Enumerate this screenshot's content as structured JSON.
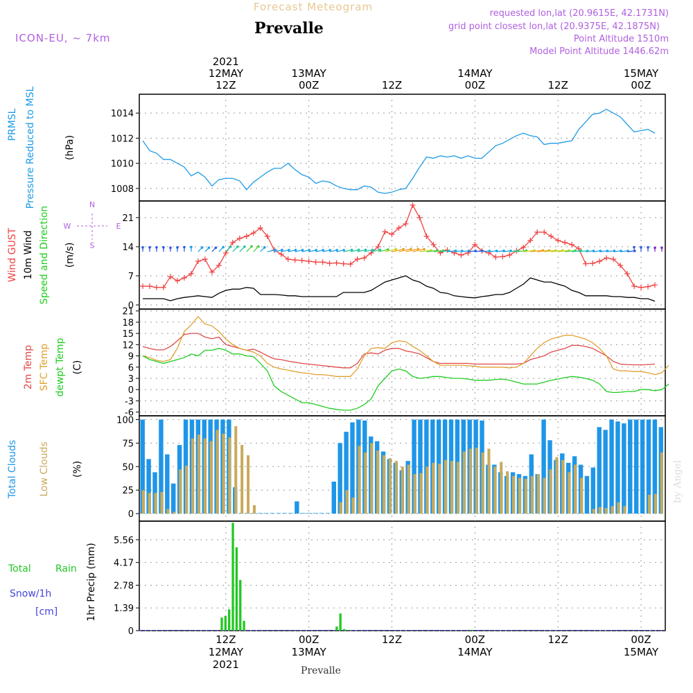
{
  "header": {
    "title": "Forecast Meteogram",
    "location": "Prevalle",
    "model": "ICON-EU, ~ 7km",
    "info": [
      "requested lon,lat (20.9615E, 42.1731N)",
      "grid point closest lon,lat (20.9375E, 42.1875N)",
      "Point Altitude 1510m",
      "Model Point Altitude 1446.62m"
    ],
    "footer_location": "Prevalle",
    "watermark": "by Angel"
  },
  "colors": {
    "pressure": "#1e9be6",
    "gust": "#f04040",
    "wind": "#000000",
    "temp2m": "#e04848",
    "sfc": "#e0a030",
    "dewpt": "#1ecc1e",
    "total_clouds": "#1e96e8",
    "low_clouds": "#c8aa5a",
    "rain": "#22c822",
    "purple": "#b060e0",
    "title_orange": "#e8c890",
    "grid": "#999999"
  },
  "time_axis": {
    "top_labels": [
      {
        "x": 12,
        "lines": [
          "2021",
          "12MAY",
          "12Z"
        ]
      },
      {
        "x": 24,
        "lines": [
          "13MAY",
          "00Z"
        ]
      },
      {
        "x": 36,
        "lines": [
          "12Z"
        ]
      },
      {
        "x": 48,
        "lines": [
          "14MAY",
          "00Z"
        ]
      },
      {
        "x": 60,
        "lines": [
          "12Z"
        ]
      },
      {
        "x": 72,
        "lines": [
          "15MAY",
          "00Z"
        ]
      }
    ],
    "bottom_labels": [
      {
        "x": 12,
        "lines": [
          "12Z",
          "12MAY",
          "2021"
        ]
      },
      {
        "x": 24,
        "lines": [
          "00Z",
          "13MAY"
        ]
      },
      {
        "x": 36,
        "lines": [
          "12Z"
        ]
      },
      {
        "x": 48,
        "lines": [
          "00Z",
          "14MAY"
        ]
      },
      {
        "x": 60,
        "lines": [
          "12Z"
        ]
      },
      {
        "x": 72,
        "lines": [
          "00Z",
          "15MAY"
        ]
      }
    ]
  },
  "chart_data": [
    {
      "type": "line",
      "ylabel_left": [
        "PRMSL",
        "Pressure Reduced to MSL"
      ],
      "ylabel_right": "(hPa)",
      "ylim": [
        1007,
        1015.5
      ],
      "yticks": [
        "1008",
        "1010",
        "1012",
        "1014"
      ],
      "series": [
        {
          "values": [
            1011.8,
            1011.0,
            1010.8,
            1010.3,
            1010.3,
            1010.0,
            1009.7,
            1009.0,
            1009.3,
            1008.9,
            1008.2,
            1008.7,
            1008.8,
            1008.8,
            1008.6,
            1007.9,
            1008.5,
            1008.9,
            1009.3,
            1009.6,
            1009.6,
            1010.0,
            1009.5,
            1009.1,
            1008.9,
            1008.4,
            1008.6,
            1008.5,
            1008.2,
            1008.0,
            1007.9,
            1007.9,
            1008.2,
            1008.1,
            1007.7,
            1007.6,
            1007.7,
            1007.9,
            1008.0,
            1008.8,
            1009.7,
            1010.5,
            1010.4,
            1010.6,
            1010.5,
            1010.6,
            1010.4,
            1010.6,
            1010.4,
            1010.4,
            1010.9,
            1011.4,
            1011.6,
            1011.9,
            1012.2,
            1012.4,
            1012.2,
            1012.1,
            1011.5,
            1011.6,
            1011.6,
            1011.7,
            1011.8,
            1012.7,
            1013.3,
            1013.9,
            1014.0,
            1014.3,
            1014.0,
            1013.7,
            1013.1,
            1012.5,
            1012.6,
            1012.7,
            1012.4
          ]
        }
      ]
    },
    {
      "type": "line",
      "ylabel_left": [
        "Wind GUST",
        "10m Wind",
        "Speed and Direction"
      ],
      "ylabel_right": "(m/s)",
      "ylim": [
        -1,
        25
      ],
      "yticks": [
        "0",
        "7",
        "14",
        "21"
      ],
      "compass": [
        "N",
        "W",
        "E",
        "S"
      ],
      "series": [
        {
          "values": [
            4.5,
            4.5,
            4.2,
            4.2,
            6.8,
            5.8,
            6.5,
            7.5,
            10.5,
            11.0,
            7.9,
            9.5,
            12.5,
            15.0,
            16.0,
            16.5,
            17.3,
            18.5,
            16.5,
            13.2,
            12.2,
            11.0,
            10.8,
            10.7,
            10.5,
            10.3,
            10.3,
            10.0,
            10.1,
            9.9,
            9.8,
            11.0,
            11.3,
            12.5,
            14.0,
            17.6,
            17.0,
            18.5,
            19.5,
            24.0,
            21.0,
            16.5,
            14.5,
            12.5,
            13.2,
            12.5,
            12.0,
            12.5,
            14.5,
            13.0,
            12.5,
            11.5,
            11.6,
            12.0,
            13.0,
            13.8,
            15.5,
            17.5,
            17.5,
            16.5,
            15.5,
            15.0,
            14.5,
            13.5,
            9.9,
            10.0,
            10.5,
            11.3,
            11.0,
            9.5,
            7.5,
            4.5,
            4.2,
            4.4,
            4.8
          ]
        },
        {
          "values": [
            1.5,
            1.5,
            1.5,
            1.5,
            1.0,
            1.5,
            1.8,
            2.0,
            2.2,
            2.0,
            1.8,
            2.8,
            3.5,
            3.8,
            3.8,
            4.2,
            4.0,
            2.5,
            2.5,
            2.5,
            2.4,
            2.2,
            2.2,
            2.0,
            2.0,
            2.0,
            2.0,
            2.0,
            2.0,
            3.0,
            3.0,
            3.0,
            3.0,
            3.5,
            4.5,
            5.5,
            6.0,
            6.5,
            7.0,
            6.0,
            5.5,
            4.5,
            4.0,
            3.0,
            2.8,
            2.2,
            2.0,
            1.8,
            1.7,
            2.0,
            2.2,
            2.5,
            2.5,
            3.0,
            4.0,
            5.0,
            6.5,
            6.0,
            5.5,
            5.5,
            5.0,
            4.5,
            3.5,
            3.0,
            2.2,
            2.2,
            2.2,
            2.2,
            2.0,
            2.0,
            1.8,
            1.8,
            1.5,
            1.5,
            0.9
          ]
        }
      ]
    },
    {
      "type": "line",
      "ylabel_left": [
        "2m Temp",
        "SFC Temp",
        "dewpt Temp"
      ],
      "ylabel_right": "(C)",
      "ylim": [
        -7,
        21.5
      ],
      "yticks": [
        "21",
        "18",
        "15",
        "12",
        "9",
        "6",
        "3",
        "0",
        "-3",
        "-6"
      ],
      "series": [
        {
          "values": [
            11.5,
            11.0,
            10.6,
            10.6,
            11.5,
            13.0,
            14.7,
            15.0,
            15.0,
            14.0,
            13.6,
            14.0,
            12.0,
            11.5,
            11.0,
            10.5,
            10.8,
            10.0,
            9.0,
            8.2,
            8.0,
            7.6,
            7.3,
            7.0,
            6.8,
            6.6,
            6.4,
            6.2,
            6.0,
            5.8,
            5.8,
            7.0,
            9.5,
            9.8,
            9.5,
            10.5,
            11.0,
            11.0,
            10.3,
            10.0,
            9.5,
            8.5,
            7.5,
            7.0,
            7.0,
            7.0,
            7.0,
            7.0,
            6.8,
            6.8,
            6.8,
            6.8,
            6.8,
            6.8,
            6.8,
            7.0,
            8.0,
            8.5,
            9.0,
            10.0,
            10.5,
            11.0,
            11.8,
            11.8,
            11.5,
            11.0,
            10.0,
            9.0,
            7.5,
            6.8,
            6.7,
            6.6,
            6.6,
            6.7,
            6.8
          ]
        },
        {
          "values": [
            9.0,
            8.5,
            7.8,
            7.5,
            8.0,
            11.0,
            15.5,
            17.3,
            19.5,
            17.5,
            17.0,
            15.5,
            13.5,
            12.0,
            11.0,
            10.5,
            10.0,
            9.0,
            7.0,
            6.0,
            5.5,
            5.2,
            4.8,
            4.5,
            4.3,
            4.0,
            4.0,
            3.8,
            3.5,
            3.5,
            3.5,
            5.5,
            9.0,
            11.0,
            11.2,
            11.0,
            12.5,
            13.0,
            12.8,
            11.5,
            10.5,
            9.0,
            7.5,
            6.5,
            6.5,
            6.5,
            6.5,
            6.4,
            6.2,
            6.0,
            6.0,
            6.0,
            6.0,
            5.8,
            6.0,
            7.0,
            9.0,
            11.0,
            12.5,
            13.5,
            14.0,
            14.5,
            14.5,
            14.0,
            13.5,
            12.5,
            11.0,
            9.0,
            5.5,
            5.0,
            5.0,
            4.8,
            4.8,
            4.5,
            4.0,
            4.5,
            6.5
          ]
        },
        {
          "values": [
            9.0,
            8.0,
            7.5,
            7.0,
            7.5,
            8.0,
            8.5,
            9.5,
            9.0,
            10.5,
            10.5,
            11.0,
            10.5,
            9.5,
            9.5,
            9.0,
            8.8,
            7.0,
            5.0,
            1.0,
            -0.5,
            -1.5,
            -2.5,
            -3.5,
            -3.5,
            -4.0,
            -4.5,
            -5.0,
            -5.3,
            -5.5,
            -5.5,
            -5.0,
            -4.0,
            -2.5,
            1.0,
            3.0,
            5.0,
            5.5,
            5.0,
            3.5,
            3.0,
            3.2,
            3.5,
            3.5,
            3.2,
            3.0,
            3.0,
            2.8,
            2.5,
            2.5,
            2.5,
            2.7,
            2.8,
            2.5,
            2.0,
            1.5,
            1.5,
            1.5,
            2.0,
            2.5,
            2.8,
            3.2,
            3.5,
            3.3,
            3.0,
            2.5,
            1.5,
            -0.5,
            -0.8,
            -0.7,
            -0.5,
            -0.5,
            0.0,
            0.0,
            -0.3,
            0.0,
            1.5
          ]
        }
      ]
    },
    {
      "type": "bar",
      "ylabel_left": [
        "Total Clouds",
        "Low Clouds"
      ],
      "ylabel_right": "(%)",
      "ylim": [
        -8,
        104
      ],
      "yticks": [
        "100",
        "75",
        "50",
        "25",
        "0"
      ],
      "series": [
        {
          "values": [
            100,
            58,
            44,
            100,
            63,
            32,
            73,
            100,
            100,
            100,
            100,
            100,
            100,
            100,
            100,
            28,
            0,
            0,
            0,
            0,
            0,
            0,
            0,
            0,
            0,
            13,
            0,
            0,
            0,
            0,
            0,
            34,
            75,
            87,
            97,
            100,
            99,
            82,
            77,
            66,
            58,
            54,
            46,
            56,
            100,
            100,
            100,
            100,
            100,
            100,
            100,
            100,
            100,
            100,
            100,
            99,
            52,
            52,
            44,
            40,
            44,
            42,
            40,
            63,
            42,
            100,
            78,
            57,
            64,
            54,
            61,
            52,
            40,
            49,
            92,
            89,
            100,
            98,
            96,
            100,
            100,
            100,
            100,
            100,
            92
          ]
        },
        {
          "values": [
            25,
            22,
            22,
            23,
            5,
            2,
            47,
            51,
            80,
            84,
            80,
            77,
            89,
            85,
            81,
            93,
            73,
            62,
            9,
            0,
            0,
            0,
            0,
            0,
            0,
            0,
            0,
            0,
            0,
            0,
            0,
            0,
            12,
            25,
            17,
            72,
            65,
            75,
            67,
            62,
            59,
            56,
            50,
            52,
            42,
            43,
            50,
            54,
            53,
            57,
            56,
            55,
            66,
            69,
            70,
            65,
            69,
            50,
            55,
            45,
            40,
            38,
            37,
            40,
            42,
            38,
            47,
            60,
            57,
            44,
            52,
            38,
            0,
            5,
            7,
            6,
            8,
            12,
            8,
            0,
            0,
            0,
            20,
            21,
            65
          ]
        }
      ]
    },
    {
      "type": "bar",
      "ylabel_left": [
        "Total",
        "Rain",
        "Snow/1h",
        "[cm]"
      ],
      "ylabel_right": "1hr Precip (mm)",
      "ylim": [
        0,
        6.7
      ],
      "yticks": [
        "5.56",
        "4.17",
        "2.78",
        "1.39",
        "0"
      ],
      "series": [
        {
          "values": [
            0,
            0,
            0,
            0,
            0,
            0,
            0,
            0,
            0,
            0,
            0,
            0,
            0,
            0,
            0,
            0,
            0,
            0,
            0,
            0,
            0,
            0.8,
            0.9,
            1.3,
            6.6,
            5.1,
            3.1,
            0.6,
            0,
            0,
            0,
            0,
            0,
            0,
            0,
            0,
            0,
            0,
            0,
            0,
            0,
            0,
            0,
            0,
            0,
            0,
            0,
            0,
            0,
            0,
            0,
            0,
            0.25,
            1.05,
            0.1,
            0.05,
            0,
            0,
            0,
            0,
            0,
            0,
            0,
            0,
            0,
            0,
            0,
            0,
            0,
            0,
            0,
            0,
            0,
            0,
            0,
            0,
            0,
            0,
            0,
            0,
            0,
            0,
            0,
            0,
            0,
            0,
            0,
            0,
            0.05,
            0,
            0,
            0,
            0,
            0,
            0,
            0,
            0,
            0,
            0,
            0,
            0,
            0,
            0,
            0,
            0,
            0,
            0,
            0,
            0,
            0,
            0,
            0,
            0,
            0,
            0,
            0,
            0,
            0,
            0,
            0,
            0,
            0,
            0,
            0,
            0,
            0,
            0,
            0,
            0,
            0,
            0,
            0,
            0,
            0,
            0,
            0,
            0,
            0,
            0,
            0
          ]
        }
      ]
    }
  ]
}
